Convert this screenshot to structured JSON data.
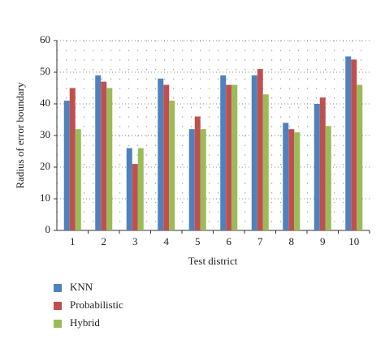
{
  "chart_data": {
    "type": "bar",
    "xlabel": "Test district",
    "ylabel": "Radius of error boundary",
    "categories": [
      "1",
      "2",
      "3",
      "4",
      "5",
      "6",
      "7",
      "8",
      "9",
      "10"
    ],
    "series": [
      {
        "name": "KNN",
        "color": "#4f81bd",
        "values": [
          41,
          49,
          26,
          48,
          32,
          49,
          49,
          34,
          40,
          55
        ]
      },
      {
        "name": "Probabilistic",
        "color": "#c0504d",
        "values": [
          45,
          47,
          21,
          46,
          36,
          46,
          51,
          32,
          42,
          54
        ]
      },
      {
        "name": "Hybrid",
        "color": "#9bbb59",
        "values": [
          32,
          45,
          26,
          41,
          32,
          46,
          43,
          31,
          33,
          46
        ]
      }
    ],
    "ylim": [
      0,
      60
    ],
    "yticks": [
      0,
      10,
      20,
      30,
      40,
      50,
      60
    ],
    "grid": true
  }
}
